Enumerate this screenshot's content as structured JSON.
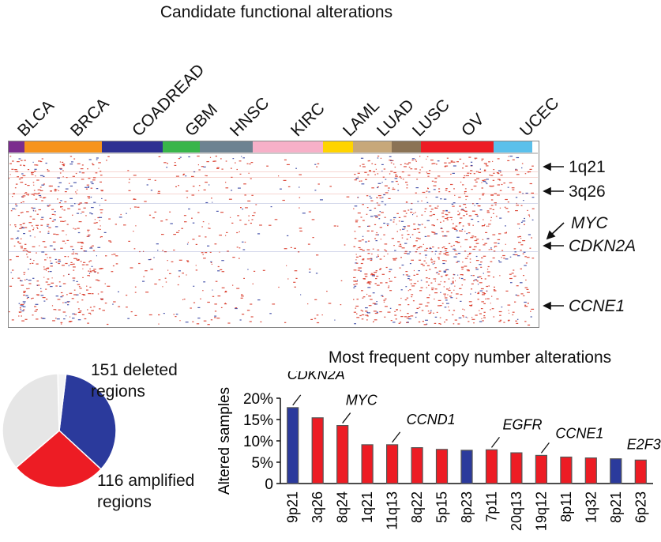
{
  "heatmap": {
    "title": "Candidate functional alterations",
    "cohorts": [
      {
        "name": "BLCA",
        "color": "#7b2d8e"
      },
      {
        "name": "BRCA",
        "color": "#f7941d"
      },
      {
        "name": "COADREAD",
        "color": "#2e3192"
      },
      {
        "name": "GBM",
        "color": "#39b54a"
      },
      {
        "name": "HNSC",
        "color": "#6d8291"
      },
      {
        "name": "KIRC",
        "color": "#f7b0c8"
      },
      {
        "name": "LAML",
        "color": "#ffd400"
      },
      {
        "name": "LUAD",
        "color": "#c7a87a"
      },
      {
        "name": "LUSC",
        "color": "#8b7355"
      },
      {
        "name": "OV",
        "color": "#ed1c24"
      },
      {
        "name": "UCEC",
        "color": "#5bc0eb"
      }
    ],
    "annotations": [
      {
        "label": "1q21",
        "italic": false
      },
      {
        "label": "3q26",
        "italic": false
      },
      {
        "label": "MYC",
        "italic": true
      },
      {
        "label": "CDKN2A",
        "italic": true
      },
      {
        "label": "CCNE1",
        "italic": true
      }
    ],
    "colors": {
      "amplification": "#d7301f",
      "deletion": "#2b3a9c"
    }
  },
  "pie": {
    "labels": [
      "151 deleted regions",
      "116 amplified regions"
    ],
    "label_lines": [
      [
        "151 deleted",
        "regions"
      ],
      [
        "116 amplified",
        "regions"
      ]
    ],
    "slices": [
      {
        "value": 151,
        "color": "#2b3a9c"
      },
      {
        "value": 116,
        "color": "#ed1c24"
      },
      {
        "value": 155,
        "color": "#e6e6e6"
      },
      {
        "value": 10,
        "color": "#f4f4f4"
      }
    ]
  },
  "chart_data": {
    "type": "bar",
    "title": "Most frequent copy number alterations",
    "xlabel": "",
    "ylabel": "Altered samples",
    "ylim": [
      0,
      20
    ],
    "yticks": [
      "0",
      "5%",
      "10%",
      "15%",
      "20%"
    ],
    "categories": [
      "9p21",
      "3q26",
      "8q24",
      "1q21",
      "11q13",
      "8q22",
      "5p15",
      "8p23",
      "7p11",
      "20q13",
      "19q12",
      "8p11",
      "1q32",
      "8p21",
      "6p23"
    ],
    "values": [
      17.8,
      15.4,
      13.6,
      9.1,
      9.1,
      8.4,
      8.0,
      7.8,
      7.9,
      7.2,
      6.6,
      6.2,
      6.0,
      5.8,
      5.5
    ],
    "bar_colors": [
      "#2b3a9c",
      "#ed1c24",
      "#ed1c24",
      "#ed1c24",
      "#ed1c24",
      "#ed1c24",
      "#ed1c24",
      "#2b3a9c",
      "#ed1c24",
      "#ed1c24",
      "#ed1c24",
      "#ed1c24",
      "#ed1c24",
      "#2b3a9c",
      "#ed1c24"
    ],
    "gene_annotations": [
      {
        "label": "CDKN2A",
        "index": 0
      },
      {
        "label": "MYC",
        "index": 2
      },
      {
        "label": "CCND1",
        "index": 4
      },
      {
        "label": "EGFR",
        "index": 8
      },
      {
        "label": "CCNE1",
        "index": 10
      },
      {
        "label": "E2F3",
        "index": 14
      }
    ]
  }
}
